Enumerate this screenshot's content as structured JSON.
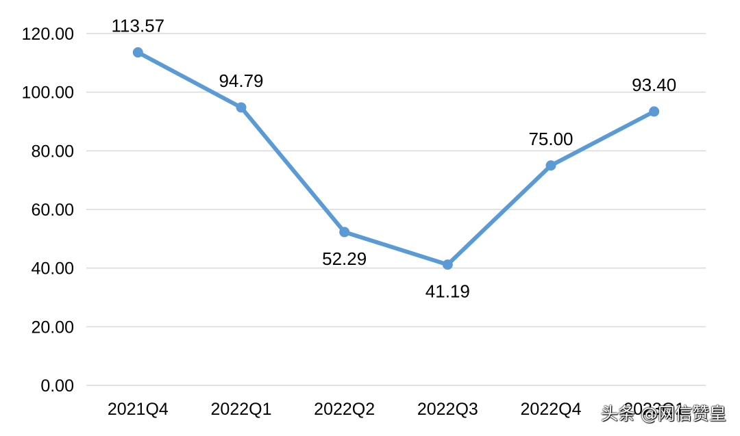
{
  "chart_data": {
    "type": "line",
    "categories": [
      "2021Q4",
      "2022Q1",
      "2022Q2",
      "2022Q3",
      "2022Q4",
      "2023Q1"
    ],
    "values": [
      113.57,
      94.79,
      52.29,
      41.19,
      75.0,
      93.4
    ],
    "data_labels": [
      "113.57",
      "94.79",
      "52.29",
      "41.19",
      "75.00",
      "93.40"
    ],
    "y_ticks": [
      "0.00",
      "20.00",
      "40.00",
      "60.00",
      "80.00",
      "100.00",
      "120.00"
    ],
    "ylim": [
      0,
      120
    ],
    "title": "",
    "xlabel": "",
    "ylabel": "",
    "grid": true,
    "legend": "none",
    "line_color": "#5b9bd5",
    "grid_color": "#d9d9d9"
  },
  "watermark": {
    "text": "头条 @网信赞皇"
  }
}
